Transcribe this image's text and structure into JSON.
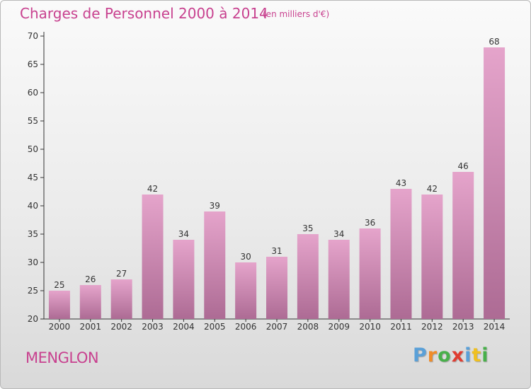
{
  "header": {
    "title": "Charges de Personnel 2000 à 2014",
    "subtitle": "(en milliers d'€)"
  },
  "footer": {
    "commune": "MENGLON",
    "logo": {
      "letters": [
        "P",
        "r",
        "o",
        "x",
        "i",
        "t",
        "i"
      ],
      "text": "Proxiti"
    }
  },
  "colors": {
    "title": "#c8418f",
    "bar_top": "#e5a4cb",
    "bar_bottom": "#ad6b94",
    "axis": "#333333",
    "grid": "#cfcfcf",
    "logo": [
      "#5aa0d8",
      "#f08c28",
      "#48b04a",
      "#e03c30",
      "#5aa0d8",
      "#f0c020",
      "#48b04a"
    ]
  },
  "chart_data": {
    "type": "bar",
    "title": "Charges de Personnel 2000 à 2014",
    "subtitle": "(en milliers d'€)",
    "xlabel": "",
    "ylabel": "",
    "categories": [
      "2000",
      "2001",
      "2002",
      "2003",
      "2004",
      "2005",
      "2006",
      "2007",
      "2008",
      "2009",
      "2010",
      "2011",
      "2012",
      "2013",
      "2014"
    ],
    "values": [
      25,
      26,
      27,
      42,
      34,
      39,
      30,
      31,
      35,
      34,
      36,
      43,
      42,
      46,
      68
    ],
    "ylim": [
      20,
      70
    ],
    "yticks": [
      20,
      25,
      30,
      35,
      40,
      45,
      50,
      55,
      60,
      65,
      70
    ],
    "grid": false,
    "legend": "none"
  }
}
